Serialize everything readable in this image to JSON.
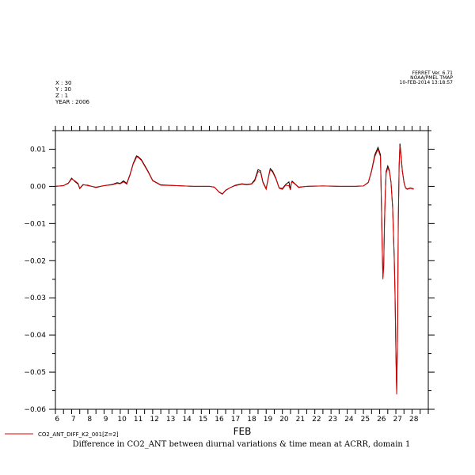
{
  "header": {
    "left_lines": [
      "X : 30",
      "Y : 30",
      "Z : 1",
      "YEAR : 2006"
    ],
    "right_lines": [
      "FERRET Ver. 6.71",
      "NOAA/PMEL TMAP",
      "10-FEB-2014 13:18:57"
    ]
  },
  "caption": "Difference in CO2_ANT between diurnal variations & time mean at ACRR, domain 1",
  "chart_data": {
    "type": "line",
    "title": "Difference in CO2_ANT between diurnal variations & time mean at ACRR, domain 1",
    "xlabel": "FEB",
    "ylabel": "",
    "xlim": [
      5.5,
      28.5
    ],
    "ylim": [
      -0.06,
      0.015
    ],
    "x_ticks": [
      6,
      7,
      8,
      9,
      10,
      11,
      12,
      13,
      14,
      15,
      16,
      17,
      18,
      19,
      20,
      21,
      22,
      23,
      24,
      25,
      26,
      27,
      28
    ],
    "x_tick_labels": [
      "6",
      "7",
      "8",
      "9",
      "10",
      "11",
      "12",
      "13",
      "14",
      "15",
      "16",
      "17",
      "18",
      "19",
      "20",
      "21",
      "22",
      "23",
      "24",
      "25",
      "26",
      "27",
      "28"
    ],
    "y_ticks": [
      0.01,
      0.0,
      -0.01,
      -0.02,
      -0.03,
      -0.04,
      -0.05,
      -0.06
    ],
    "y_tick_labels": [
      "0.01",
      "0.00",
      "−0.01",
      "−0.02",
      "−0.03",
      "−0.04",
      "−0.05",
      "−0.06"
    ],
    "grid": false,
    "legend_position": "bottom-left",
    "series": [
      {
        "name": "CO2_ANT_DIFF_K2_001[Z=2]",
        "color": "#e00000",
        "x": [
          5.5,
          6.0,
          6.3,
          6.5,
          6.7,
          6.9,
          7.0,
          7.2,
          7.5,
          8.0,
          8.5,
          9.0,
          9.3,
          9.5,
          9.7,
          9.9,
          10.1,
          10.3,
          10.5,
          10.6,
          10.8,
          11.0,
          11.2,
          11.5,
          12.0,
          13.0,
          14.0,
          15.0,
          15.3,
          15.6,
          15.8,
          16.0,
          16.3,
          16.6,
          17.0,
          17.3,
          17.6,
          17.8,
          18.0,
          18.15,
          18.3,
          18.5,
          18.6,
          18.75,
          18.9,
          19.1,
          19.3,
          19.5,
          19.7,
          19.9,
          20.0,
          20.05,
          20.1,
          20.3,
          20.5,
          21.0,
          22.0,
          23.0,
          24.0,
          24.5,
          24.8,
          25.0,
          25.2,
          25.4,
          25.55,
          25.65,
          25.7,
          25.75,
          25.8,
          25.85,
          25.9,
          26.0,
          26.1,
          26.2,
          26.3,
          26.4,
          26.45,
          26.5,
          26.55,
          26.6,
          26.65,
          26.7,
          26.75,
          26.8,
          26.9,
          27.0,
          27.1,
          27.2,
          27.4,
          27.6
        ],
        "y": [
          0.0,
          0.0002,
          0.0008,
          0.002,
          0.0015,
          0.0008,
          -0.0005,
          0.0005,
          0.0002,
          -0.0002,
          0.0002,
          0.0004,
          0.0008,
          0.0007,
          0.0012,
          0.0006,
          0.003,
          0.006,
          0.0078,
          0.0078,
          0.007,
          0.0055,
          0.004,
          0.0015,
          0.0003,
          0.0002,
          0.0,
          0.0,
          -0.0002,
          -0.0015,
          -0.002,
          -0.001,
          -0.0003,
          0.0002,
          0.0006,
          0.0004,
          0.0006,
          0.0015,
          0.004,
          0.0038,
          0.001,
          -0.0008,
          0.0015,
          0.0045,
          0.0038,
          0.002,
          -0.0005,
          -0.0008,
          0.0003,
          0.0002,
          -0.001,
          0.0008,
          0.0012,
          0.0005,
          -0.0003,
          0.0,
          0.0001,
          0.0,
          0.0,
          0.0001,
          0.001,
          0.004,
          0.008,
          0.01,
          0.008,
          -0.015,
          -0.025,
          -0.022,
          -0.01,
          -0.002,
          0.0035,
          0.005,
          0.004,
          0.001,
          -0.006,
          -0.02,
          -0.03,
          -0.045,
          -0.056,
          -0.042,
          -0.01,
          0.005,
          0.011,
          0.009,
          0.004,
          0.001,
          -0.0005,
          -0.0008,
          -0.0005,
          -0.0008
        ]
      }
    ],
    "overlay_series": {
      "color": "#000000",
      "x": [
        5.5,
        6.0,
        6.3,
        6.5,
        6.7,
        6.9,
        7.0,
        7.2,
        7.5,
        8.0,
        8.5,
        9.0,
        9.3,
        9.5,
        9.7,
        9.9,
        10.1,
        10.3,
        10.5,
        10.6,
        10.8,
        11.0,
        11.2,
        11.5,
        12.0,
        13.0,
        14.0,
        15.0,
        15.3,
        15.6,
        15.8,
        16.0,
        16.3,
        16.6,
        17.0,
        17.3,
        17.6,
        17.8,
        18.0,
        18.15,
        18.3,
        18.5,
        18.6,
        18.75,
        18.9,
        19.1,
        19.3,
        19.5,
        19.7,
        19.9,
        20.0,
        20.05,
        20.1,
        20.3,
        20.5,
        21.0,
        22.0,
        23.0,
        24.0,
        24.5,
        24.8,
        25.0,
        25.2,
        25.4,
        25.55,
        25.65,
        25.7,
        25.75,
        25.8,
        25.85,
        25.9,
        26.0,
        26.1,
        26.2,
        26.3,
        26.4,
        26.45,
        26.5,
        26.55,
        26.6,
        26.65,
        26.7,
        26.75,
        26.8,
        26.9,
        27.0,
        27.1,
        27.2,
        27.4,
        27.6
      ],
      "y": [
        0.0,
        0.0002,
        0.0009,
        0.0022,
        0.0013,
        0.0006,
        -0.0006,
        0.0004,
        0.0003,
        -0.0003,
        0.0002,
        0.0005,
        0.001,
        0.0008,
        0.0015,
        0.0008,
        0.0032,
        0.0062,
        0.0082,
        0.008,
        0.0072,
        0.0057,
        0.0042,
        0.0016,
        0.0004,
        0.0002,
        0.0,
        0.0,
        -0.0002,
        -0.0016,
        -0.0021,
        -0.0011,
        -0.0003,
        0.0003,
        0.0007,
        0.0005,
        0.0007,
        0.0018,
        0.0045,
        0.0042,
        0.0012,
        -0.0006,
        0.0017,
        0.0048,
        0.0041,
        0.0022,
        -0.0004,
        -0.0006,
        0.0005,
        0.0012,
        -0.0009,
        0.0009,
        0.0014,
        0.0006,
        -0.0002,
        0.0,
        0.0001,
        0.0,
        0.0,
        0.0001,
        0.0011,
        0.0042,
        0.0085,
        0.0105,
        0.0085,
        -0.014,
        -0.0245,
        -0.021,
        -0.009,
        -0.0015,
        0.004,
        0.0055,
        0.0043,
        0.0012,
        -0.0055,
        -0.019,
        -0.029,
        -0.044,
        -0.0555,
        -0.041,
        -0.009,
        0.0055,
        0.0115,
        0.0095,
        0.0042,
        0.0012,
        -0.0004,
        -0.0007,
        -0.0004,
        -0.0007
      ]
    }
  }
}
